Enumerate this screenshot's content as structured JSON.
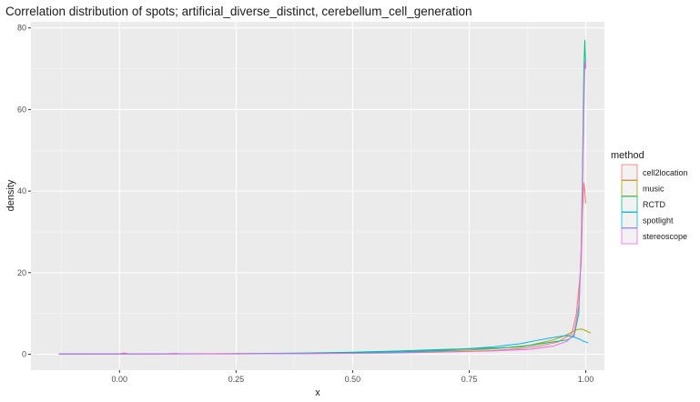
{
  "chart_data": {
    "type": "line",
    "title": "Correlation distribution of spots; artificial_diverse_distinct, cerebellum_cell_generation",
    "xlabel": "x",
    "ylabel": "density",
    "xlim": [
      -0.19,
      1.04
    ],
    "ylim": [
      -3.9,
      81.5
    ],
    "x_ticks": [
      0.0,
      0.25,
      0.5,
      0.75,
      1.0
    ],
    "x_tick_labels": [
      "0.00",
      "0.25",
      "0.50",
      "0.75",
      "1.00"
    ],
    "y_ticks": [
      0,
      20,
      40,
      60,
      80
    ],
    "y_tick_labels": [
      "0",
      "20",
      "40",
      "60",
      "80"
    ],
    "grid": true,
    "legend": {
      "title": "method",
      "position": "right"
    },
    "series": [
      {
        "name": "cell2location",
        "color": "#F8766D",
        "points": [
          [
            -0.13,
            0.05
          ],
          [
            0.0,
            0.1
          ],
          [
            0.01,
            0.3
          ],
          [
            0.02,
            0.1
          ],
          [
            0.08,
            0.05
          ],
          [
            0.12,
            0.2
          ],
          [
            0.13,
            0.1
          ],
          [
            0.25,
            0.05
          ],
          [
            0.3,
            0.1
          ],
          [
            0.4,
            0.15
          ],
          [
            0.5,
            0.25
          ],
          [
            0.6,
            0.4
          ],
          [
            0.7,
            0.6
          ],
          [
            0.8,
            0.9
          ],
          [
            0.86,
            1.4
          ],
          [
            0.9,
            2.0
          ],
          [
            0.94,
            3.0
          ],
          [
            0.97,
            5.0
          ],
          [
            0.98,
            10
          ],
          [
            0.99,
            22
          ],
          [
            0.993,
            35
          ],
          [
            0.996,
            42
          ],
          [
            0.998,
            40
          ],
          [
            1.0,
            37
          ]
        ]
      },
      {
        "name": "music",
        "color": "#A3A500",
        "points": [
          [
            -0.13,
            0.05
          ],
          [
            0.0,
            0.05
          ],
          [
            0.1,
            0.05
          ],
          [
            0.2,
            0.1
          ],
          [
            0.3,
            0.15
          ],
          [
            0.4,
            0.2
          ],
          [
            0.5,
            0.3
          ],
          [
            0.6,
            0.5
          ],
          [
            0.7,
            0.8
          ],
          [
            0.8,
            1.3
          ],
          [
            0.88,
            2.2
          ],
          [
            0.93,
            3.5
          ],
          [
            0.96,
            4.8
          ],
          [
            0.98,
            6.0
          ],
          [
            0.99,
            6.2
          ],
          [
            1.0,
            5.8
          ],
          [
            1.01,
            5.2
          ]
        ]
      },
      {
        "name": "RCTD",
        "color": "#00BF7D",
        "points": [
          [
            -0.13,
            0.05
          ],
          [
            0.0,
            0.1
          ],
          [
            0.1,
            0.1
          ],
          [
            0.2,
            0.15
          ],
          [
            0.3,
            0.2
          ],
          [
            0.4,
            0.3
          ],
          [
            0.5,
            0.5
          ],
          [
            0.6,
            0.8
          ],
          [
            0.7,
            1.2
          ],
          [
            0.8,
            1.5
          ],
          [
            0.86,
            1.8
          ],
          [
            0.9,
            2.5
          ],
          [
            0.94,
            3.2
          ],
          [
            0.96,
            3.5
          ],
          [
            0.975,
            4.5
          ],
          [
            0.985,
            10
          ],
          [
            0.99,
            25
          ],
          [
            0.993,
            45
          ],
          [
            0.996,
            70
          ],
          [
            0.998,
            77
          ],
          [
            1.0,
            70
          ]
        ]
      },
      {
        "name": "spotlight",
        "color": "#00B0F6",
        "points": [
          [
            -0.13,
            0.05
          ],
          [
            0.0,
            0.05
          ],
          [
            0.1,
            0.1
          ],
          [
            0.2,
            0.1
          ],
          [
            0.3,
            0.15
          ],
          [
            0.4,
            0.2
          ],
          [
            0.5,
            0.3
          ],
          [
            0.6,
            0.6
          ],
          [
            0.7,
            1.0
          ],
          [
            0.8,
            1.8
          ],
          [
            0.86,
            2.6
          ],
          [
            0.9,
            3.5
          ],
          [
            0.94,
            4.3
          ],
          [
            0.96,
            4.6
          ],
          [
            0.975,
            4.2
          ],
          [
            0.985,
            3.8
          ],
          [
            0.995,
            3.2
          ],
          [
            1.005,
            2.8
          ]
        ]
      },
      {
        "name": "stereoscope",
        "color": "#E76BF3",
        "points": [
          [
            -0.13,
            0.05
          ],
          [
            0.0,
            0.05
          ],
          [
            0.1,
            0.05
          ],
          [
            0.2,
            0.1
          ],
          [
            0.3,
            0.1
          ],
          [
            0.4,
            0.15
          ],
          [
            0.5,
            0.2
          ],
          [
            0.6,
            0.35
          ],
          [
            0.7,
            0.55
          ],
          [
            0.8,
            0.8
          ],
          [
            0.88,
            1.2
          ],
          [
            0.93,
            2.0
          ],
          [
            0.96,
            3.2
          ],
          [
            0.975,
            5.0
          ],
          [
            0.985,
            12
          ],
          [
            0.99,
            25
          ],
          [
            0.993,
            40
          ],
          [
            0.996,
            60
          ],
          [
            0.998,
            72
          ],
          [
            1.0,
            70
          ]
        ]
      }
    ]
  }
}
